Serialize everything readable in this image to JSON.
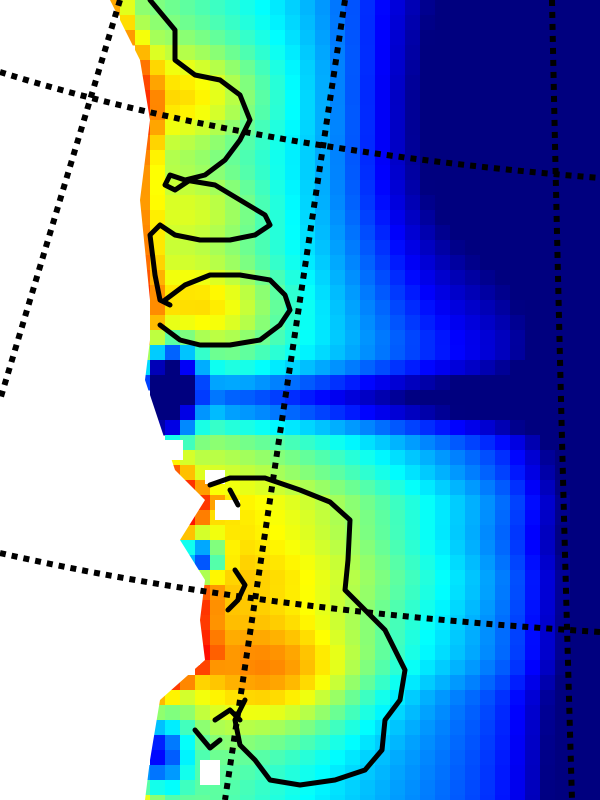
{
  "map": {
    "title": "",
    "colorbar_label": "",
    "colormap": [
      "#00007f",
      "#0000ff",
      "#007fff",
      "#00ffff",
      "#7fff7f",
      "#ffff00",
      "#ff7f00",
      "#ff0000"
    ],
    "background_color": "#ffffff",
    "contour_color": "#000000",
    "graticule_color": "#000000",
    "graticule_style": "dotted"
  }
}
